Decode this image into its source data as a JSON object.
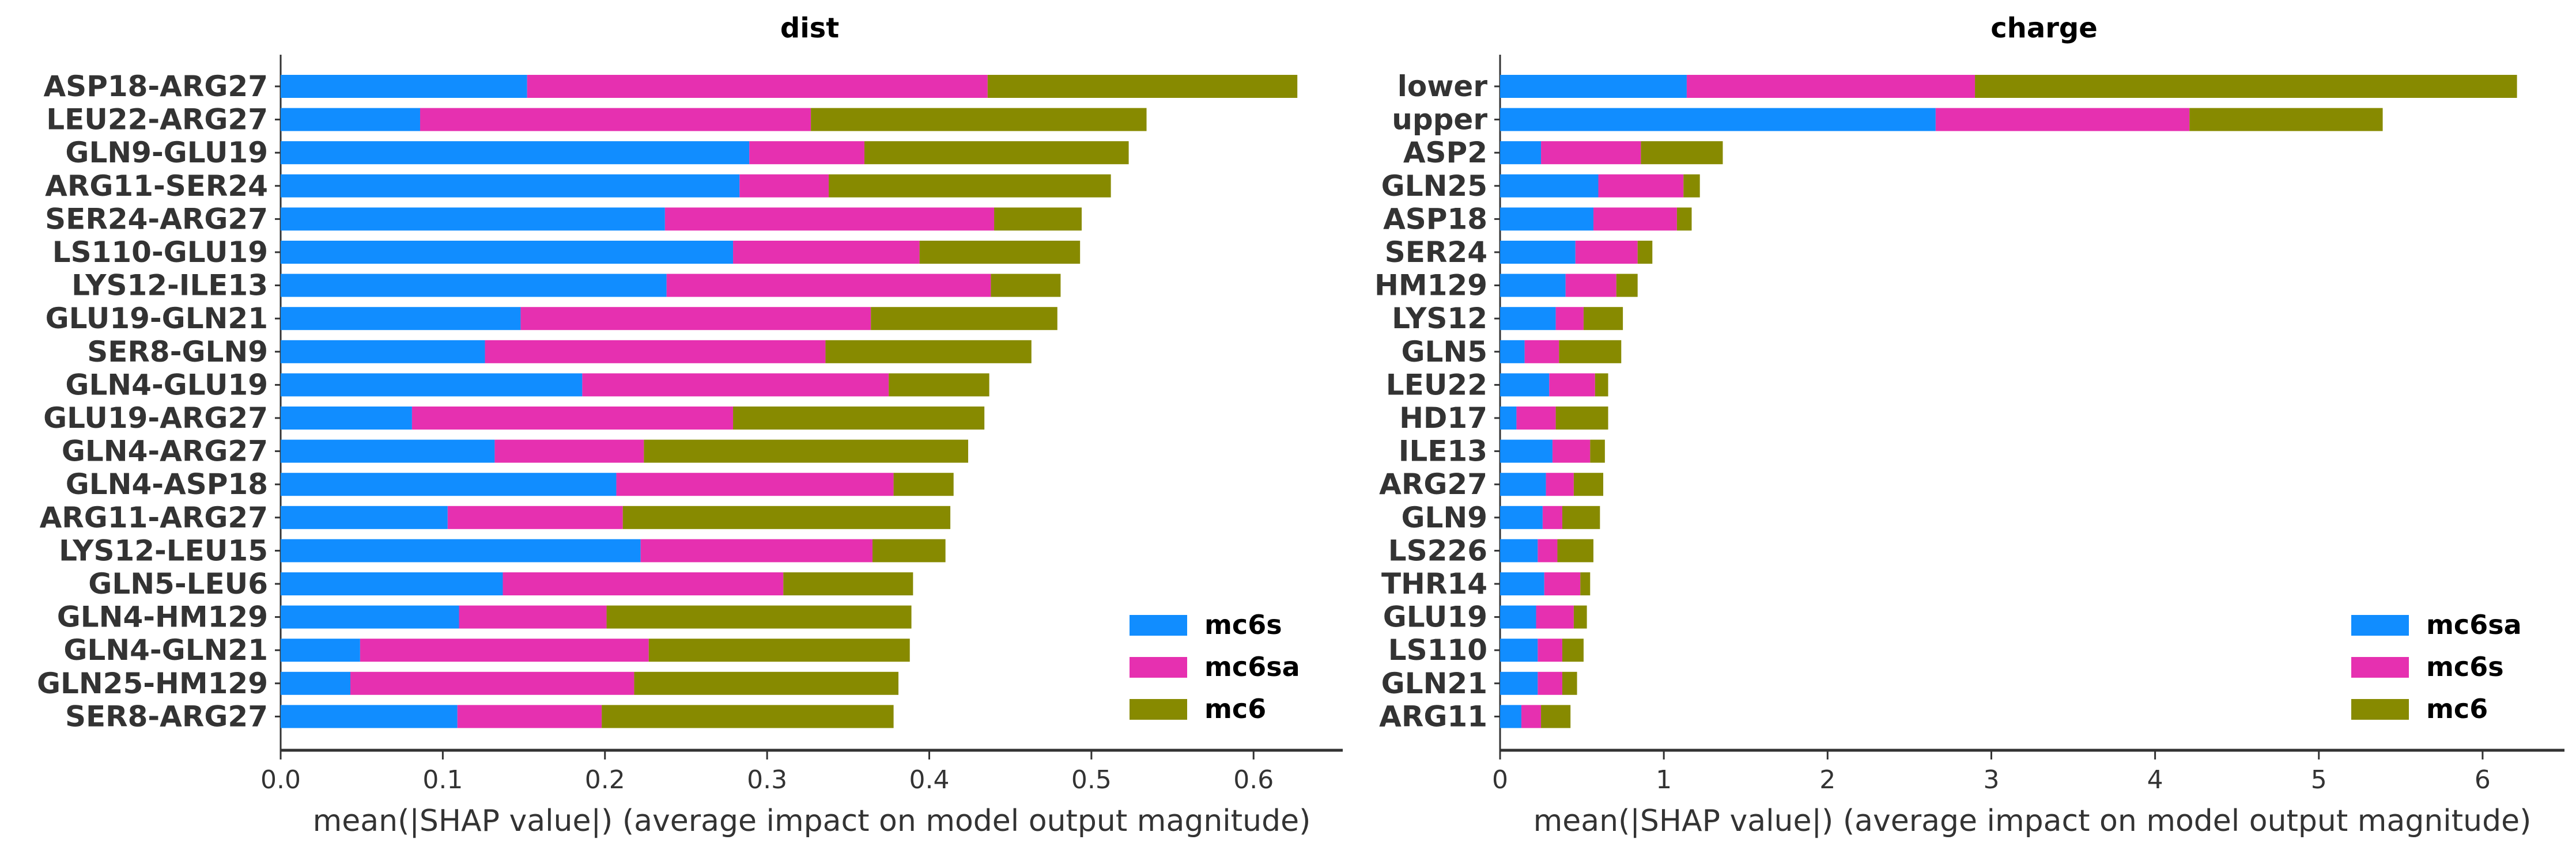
{
  "chart_data": [
    {
      "type": "bar",
      "stacked": true,
      "orientation": "horizontal",
      "title": "dist",
      "xlabel": "mean(|SHAP value|) (average impact on model output magnitude)",
      "ylabel": "",
      "xlim": [
        0,
        0.655
      ],
      "xticks": [
        "0.0",
        "0.1",
        "0.2",
        "0.3",
        "0.4",
        "0.5",
        "0.6"
      ],
      "xtick_values": [
        0,
        0.1,
        0.2,
        0.3,
        0.4,
        0.5,
        0.6
      ],
      "legend_position": "lower-right",
      "categories": [
        "ASP18-ARG27",
        "LEU22-ARG27",
        "GLN9-GLU19",
        "ARG11-SER24",
        "SER24-ARG27",
        "LS110-GLU19",
        "LYS12-ILE13",
        "GLU19-GLN21",
        "SER8-GLN9",
        "GLN4-GLU19",
        "GLU19-ARG27",
        "GLN4-ARG27",
        "GLN4-ASP18",
        "ARG11-ARG27",
        "LYS12-LEU15",
        "GLN5-LEU6",
        "GLN4-HM129",
        "GLN4-GLN21",
        "GLN25-HM129",
        "SER8-ARG27"
      ],
      "series": [
        {
          "name": "mc6s",
          "color": "#118dff",
          "values": [
            0.152,
            0.086,
            0.289,
            0.283,
            0.237,
            0.279,
            0.238,
            0.148,
            0.126,
            0.186,
            0.081,
            0.132,
            0.207,
            0.103,
            0.222,
            0.137,
            0.11,
            0.049,
            0.043,
            0.109
          ]
        },
        {
          "name": "mc6sa",
          "color": "#e630b0",
          "values": [
            0.284,
            0.241,
            0.071,
            0.055,
            0.203,
            0.115,
            0.2,
            0.216,
            0.21,
            0.189,
            0.198,
            0.092,
            0.171,
            0.108,
            0.143,
            0.173,
            0.091,
            0.178,
            0.175,
            0.089
          ]
        },
        {
          "name": "mc6",
          "color": "#878a00",
          "values": [
            0.191,
            0.207,
            0.163,
            0.174,
            0.054,
            0.099,
            0.043,
            0.115,
            0.127,
            0.062,
            0.155,
            0.2,
            0.037,
            0.202,
            0.045,
            0.08,
            0.188,
            0.161,
            0.163,
            0.18
          ]
        }
      ]
    },
    {
      "type": "bar",
      "stacked": true,
      "orientation": "horizontal",
      "title": "charge",
      "xlabel": "mean(|SHAP value|) (average impact on model output magnitude)",
      "ylabel": "",
      "xlim": [
        0,
        6.5
      ],
      "xticks": [
        "0",
        "1",
        "2",
        "3",
        "4",
        "5",
        "6"
      ],
      "xtick_values": [
        0,
        1,
        2,
        3,
        4,
        5,
        6
      ],
      "legend_position": "lower-right",
      "categories": [
        "lower",
        "upper",
        "ASP2",
        "GLN25",
        "ASP18",
        "SER24",
        "HM129",
        "LYS12",
        "GLN5",
        "LEU22",
        "HD17",
        "ILE13",
        "ARG27",
        "GLN9",
        "LS226",
        "THR14",
        "GLU19",
        "LS110",
        "GLN21",
        "ARG11"
      ],
      "series": [
        {
          "name": "mc6sa",
          "color": "#118dff",
          "values": [
            1.14,
            2.66,
            0.25,
            0.6,
            0.57,
            0.46,
            0.4,
            0.34,
            0.15,
            0.3,
            0.1,
            0.32,
            0.28,
            0.26,
            0.23,
            0.27,
            0.22,
            0.23,
            0.23,
            0.13
          ]
        },
        {
          "name": "mc6s",
          "color": "#e630b0",
          "values": [
            1.76,
            1.55,
            0.61,
            0.52,
            0.51,
            0.38,
            0.31,
            0.17,
            0.21,
            0.28,
            0.24,
            0.23,
            0.17,
            0.12,
            0.12,
            0.22,
            0.23,
            0.15,
            0.15,
            0.12
          ]
        },
        {
          "name": "mc6",
          "color": "#878a00",
          "values": [
            3.31,
            1.18,
            0.5,
            0.1,
            0.09,
            0.09,
            0.13,
            0.24,
            0.38,
            0.08,
            0.32,
            0.09,
            0.18,
            0.23,
            0.22,
            0.06,
            0.08,
            0.13,
            0.09,
            0.18
          ]
        }
      ]
    }
  ]
}
